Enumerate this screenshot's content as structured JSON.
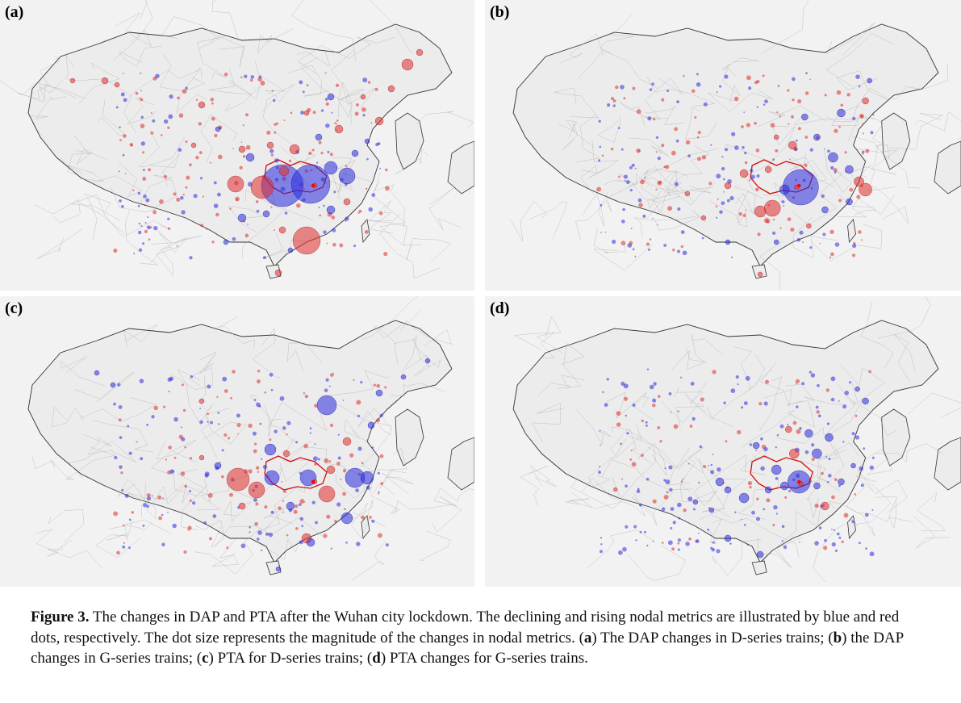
{
  "panels": [
    {
      "id": "a",
      "label": "(a)"
    },
    {
      "id": "b",
      "label": "(b)"
    },
    {
      "id": "c",
      "label": "(c)"
    },
    {
      "id": "d",
      "label": "(d)"
    }
  ],
  "colors": {
    "declining": "#2b2bde",
    "rising": "#e02b2b",
    "hubei_border": "#d01010",
    "land": "#f2f2f2",
    "border": "#aaaaaa",
    "coast": "#333333"
  },
  "caption": {
    "prefix": "Figure 3.",
    "part1": " The changes in DAP and PTA after the Wuhan city lockdown. The declining and rising nodal metrics are illustrated by blue and red dots, respectively. The dot size represents the magnitude of the changes in nodal metrics. (",
    "a": "a",
    "part2": ") The DAP changes in D-series trains; (",
    "b": "b",
    "part3": ") the DAP changes in G-series trains; (",
    "c": "c",
    "part4": ") PTA for D-series trains; (",
    "d": "d",
    "part5": ") PTA changes for G-series trains."
  }
}
